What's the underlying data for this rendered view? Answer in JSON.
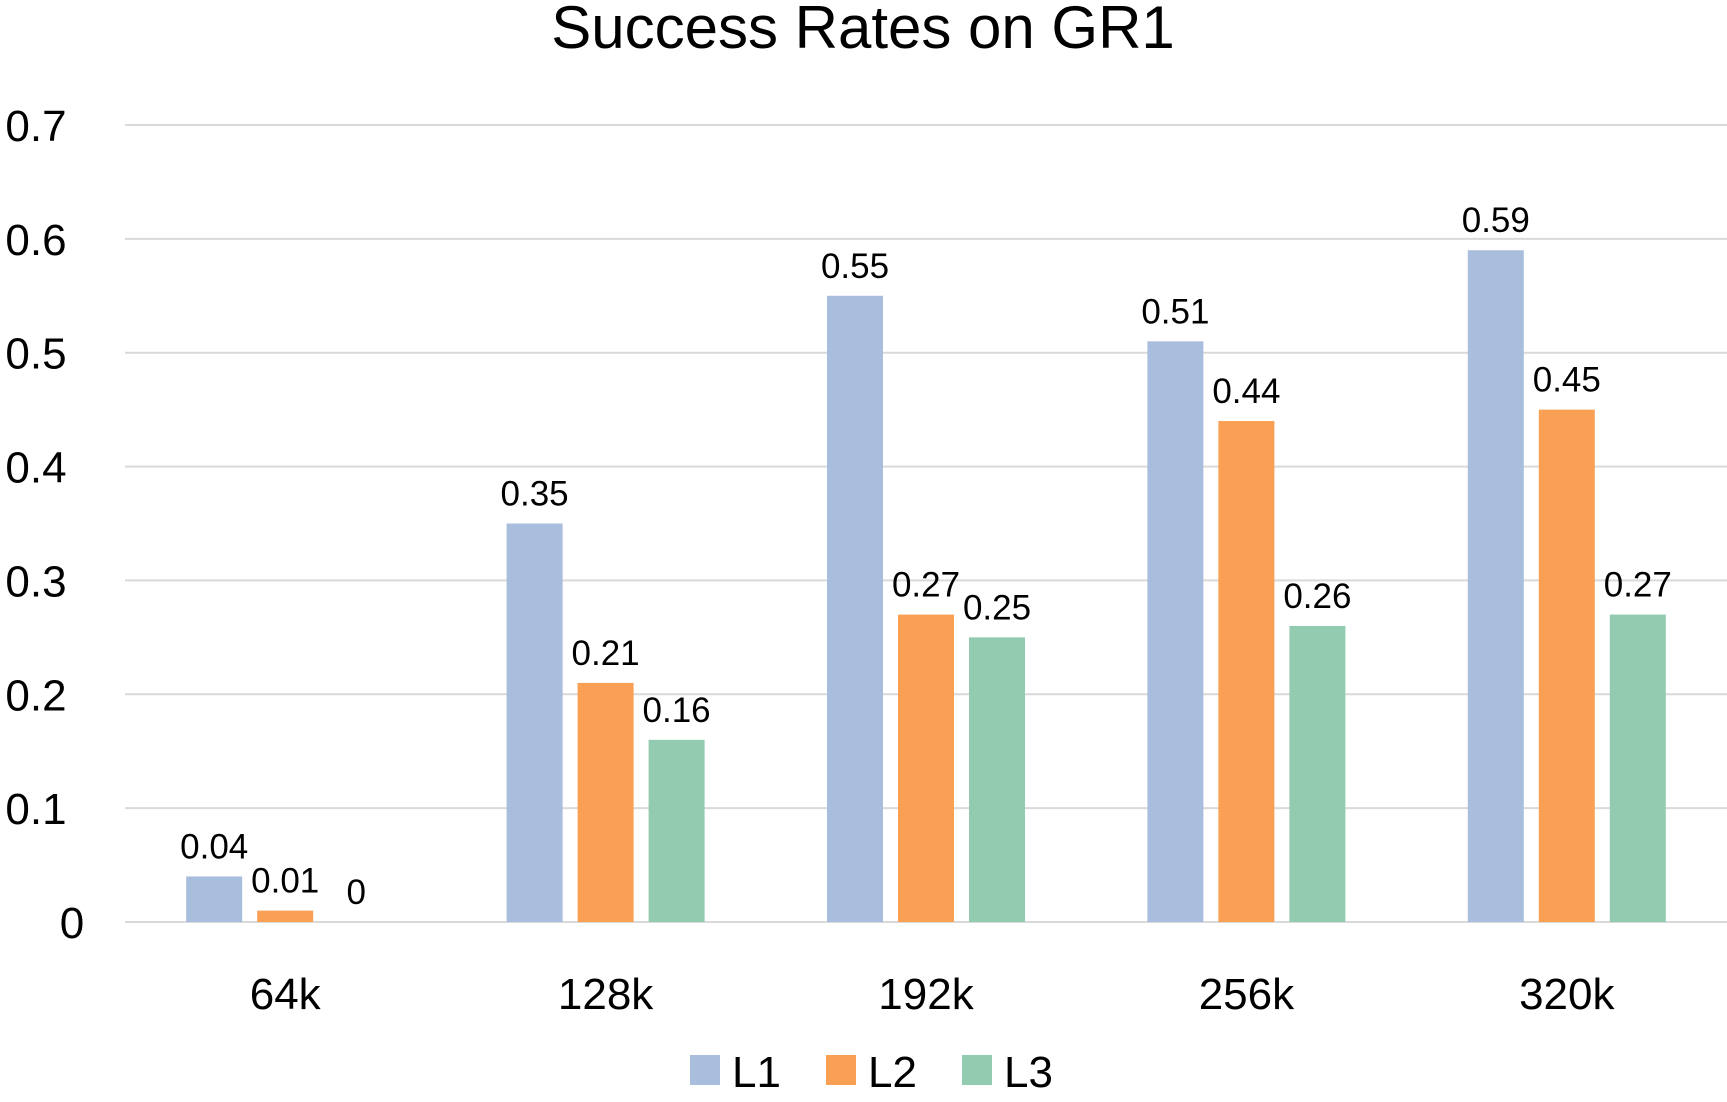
{
  "chart_data": {
    "type": "bar",
    "title": "Success Rates on GR1",
    "xlabel": "",
    "ylabel": "",
    "categories": [
      "64k",
      "128k",
      "192k",
      "256k",
      "320k"
    ],
    "series": [
      {
        "name": "L1",
        "color": "#a9bddc",
        "values": [
          0.04,
          0.35,
          0.55,
          0.51,
          0.59
        ]
      },
      {
        "name": "L2",
        "color": "#f9a054",
        "values": [
          0.01,
          0.21,
          0.27,
          0.44,
          0.45
        ]
      },
      {
        "name": "L3",
        "color": "#93cbb1",
        "values": [
          0,
          0.16,
          0.25,
          0.26,
          0.27
        ]
      }
    ],
    "ylim": [
      0,
      0.7
    ],
    "yticks": [
      0,
      0.1,
      0.2,
      0.3,
      0.4,
      0.5,
      0.6,
      0.7
    ],
    "ytick_labels": [
      "0",
      "0.1",
      "0.2",
      "0.3",
      "0.4",
      "0.5",
      "0.6",
      "0.7"
    ],
    "grid": true,
    "legend_position": "bottom"
  }
}
